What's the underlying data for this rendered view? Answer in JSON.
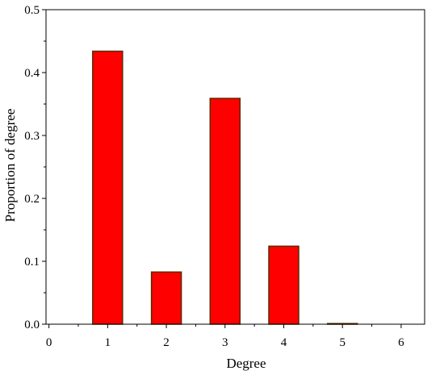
{
  "chart_data": {
    "type": "bar",
    "categories": [
      "1",
      "2",
      "3",
      "4",
      "5"
    ],
    "x": [
      1,
      2,
      3,
      4,
      5
    ],
    "values": [
      0.434,
      0.083,
      0.359,
      0.124,
      0.001
    ],
    "title": "",
    "xlabel": "Degree",
    "ylabel": "Proportion of degree",
    "xlim": [
      -0.05,
      6.4
    ],
    "ylim": [
      0,
      0.5
    ],
    "xticks": [
      "0",
      "1",
      "2",
      "3",
      "4",
      "5",
      "6"
    ],
    "yticks": [
      "0.0",
      "0.1",
      "0.2",
      "0.3",
      "0.4",
      "0.5"
    ],
    "grid": false,
    "legend": "none",
    "colors": {
      "bar_fill": "#ff0000",
      "bar_edge": "#5a2a00",
      "axis": "#000000"
    }
  }
}
